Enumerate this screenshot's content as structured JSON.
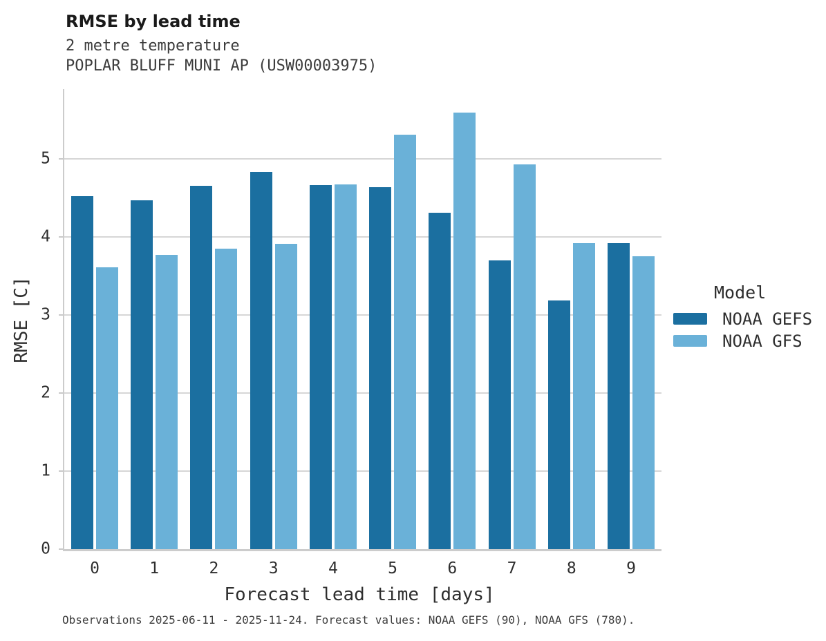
{
  "header": {
    "title": "RMSE by lead time",
    "subtitle1": "2 metre temperature",
    "subtitle2": "POPLAR BLUFF MUNI AP (USW00003975)"
  },
  "axes": {
    "xlabel": "Forecast lead time [days]",
    "ylabel": "RMSE [C]"
  },
  "legend": {
    "title": "Model",
    "items": [
      {
        "label": "NOAA GEFS",
        "color": "#1b6fa0"
      },
      {
        "label": "NOAA GFS",
        "color": "#6ab1d8"
      }
    ]
  },
  "footer": {
    "caption": "Observations 2025-06-11 - 2025-11-24. Forecast values: NOAA GEFS (90), NOAA GFS (780)."
  },
  "colors": {
    "gefs_dark_blue": "#1b6fa0",
    "gfs_light_blue": "#6ab1d8",
    "gridline": "#d6d6d6",
    "spine": "#cccccc"
  },
  "chart_data": {
    "type": "bar",
    "title": "RMSE by lead time",
    "subtitle": [
      "2 metre temperature",
      "POPLAR BLUFF MUNI AP (USW00003975)"
    ],
    "xlabel": "Forecast lead time [days]",
    "ylabel": "RMSE [C]",
    "categories": [
      "0",
      "1",
      "2",
      "3",
      "4",
      "5",
      "6",
      "7",
      "8",
      "9"
    ],
    "series": [
      {
        "name": "NOAA GEFS",
        "color": "#1b6fa0",
        "values": [
          4.52,
          4.47,
          4.65,
          4.83,
          4.66,
          4.63,
          4.31,
          3.7,
          3.18,
          3.92
        ]
      },
      {
        "name": "NOAA GFS",
        "color": "#6ab1d8",
        "values": [
          3.61,
          3.77,
          3.85,
          3.91,
          4.67,
          5.31,
          5.59,
          4.93,
          3.92,
          3.75
        ]
      }
    ],
    "ylim": [
      0,
      5.89
    ],
    "yticks": [
      0,
      1,
      2,
      3,
      4,
      5
    ],
    "grid": true,
    "legend_title": "Model",
    "legend_position": "right"
  }
}
